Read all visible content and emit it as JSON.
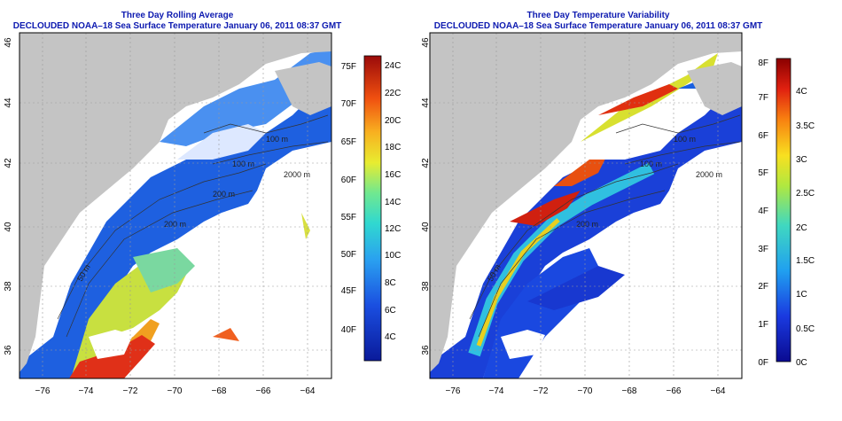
{
  "left": {
    "title_line1": "Three Day Rolling Average",
    "title_line2": "DECLOUDED NOAA–18 Sea Surface Temperature January 06, 2011 08:37 GMT",
    "lon_labels": [
      "−76",
      "−74",
      "−72",
      "−70",
      "−68",
      "−66",
      "−64"
    ],
    "lat_labels": [
      "36",
      "38",
      "40",
      "42",
      "44",
      "46"
    ],
    "colorbar_left_labels": [
      "40F",
      "45F",
      "50F",
      "55F",
      "60F",
      "65F",
      "70F",
      "75F"
    ],
    "colorbar_right_labels": [
      "4C",
      "6C",
      "8C",
      "10C",
      "12C",
      "14C",
      "16C",
      "18C",
      "20C",
      "22C",
      "24C"
    ],
    "contours": [
      "100 m",
      "100 m",
      "2000 m",
      "200 m",
      "200 m",
      "50 m"
    ],
    "colors": {
      "cold": "#1020a0",
      "mid": "#20d0c0",
      "warm": "#f0e020",
      "hot": "#d02010"
    }
  },
  "right": {
    "title_line1": "Three Day Temperature Variability",
    "title_line2": "DECLOUDED NOAA–18 Sea Surface Temperature January 06, 2011 08:37 GMT",
    "lon_labels": [
      "−76",
      "−74",
      "−72",
      "−70",
      "−68",
      "−66",
      "−64"
    ],
    "lat_labels": [
      "36",
      "38",
      "40",
      "42",
      "44",
      "46"
    ],
    "colorbar_left_labels": [
      "0F",
      "1F",
      "2F",
      "3F",
      "4F",
      "5F",
      "6F",
      "7F",
      "8F"
    ],
    "colorbar_right_labels": [
      "0C",
      "0.5C",
      "1C",
      "1.5C",
      "2C",
      "2.5C",
      "3C",
      "3.5C",
      "4C"
    ],
    "contours": [
      "100 m",
      "100 m",
      "2000 m",
      "200 m",
      "50 m"
    ],
    "colors": {
      "low": "#0a0a90",
      "high": "#8a0000"
    }
  },
  "map_colors": {
    "land": "#c4c4c4",
    "ocean_nodata": "#ffffff"
  }
}
